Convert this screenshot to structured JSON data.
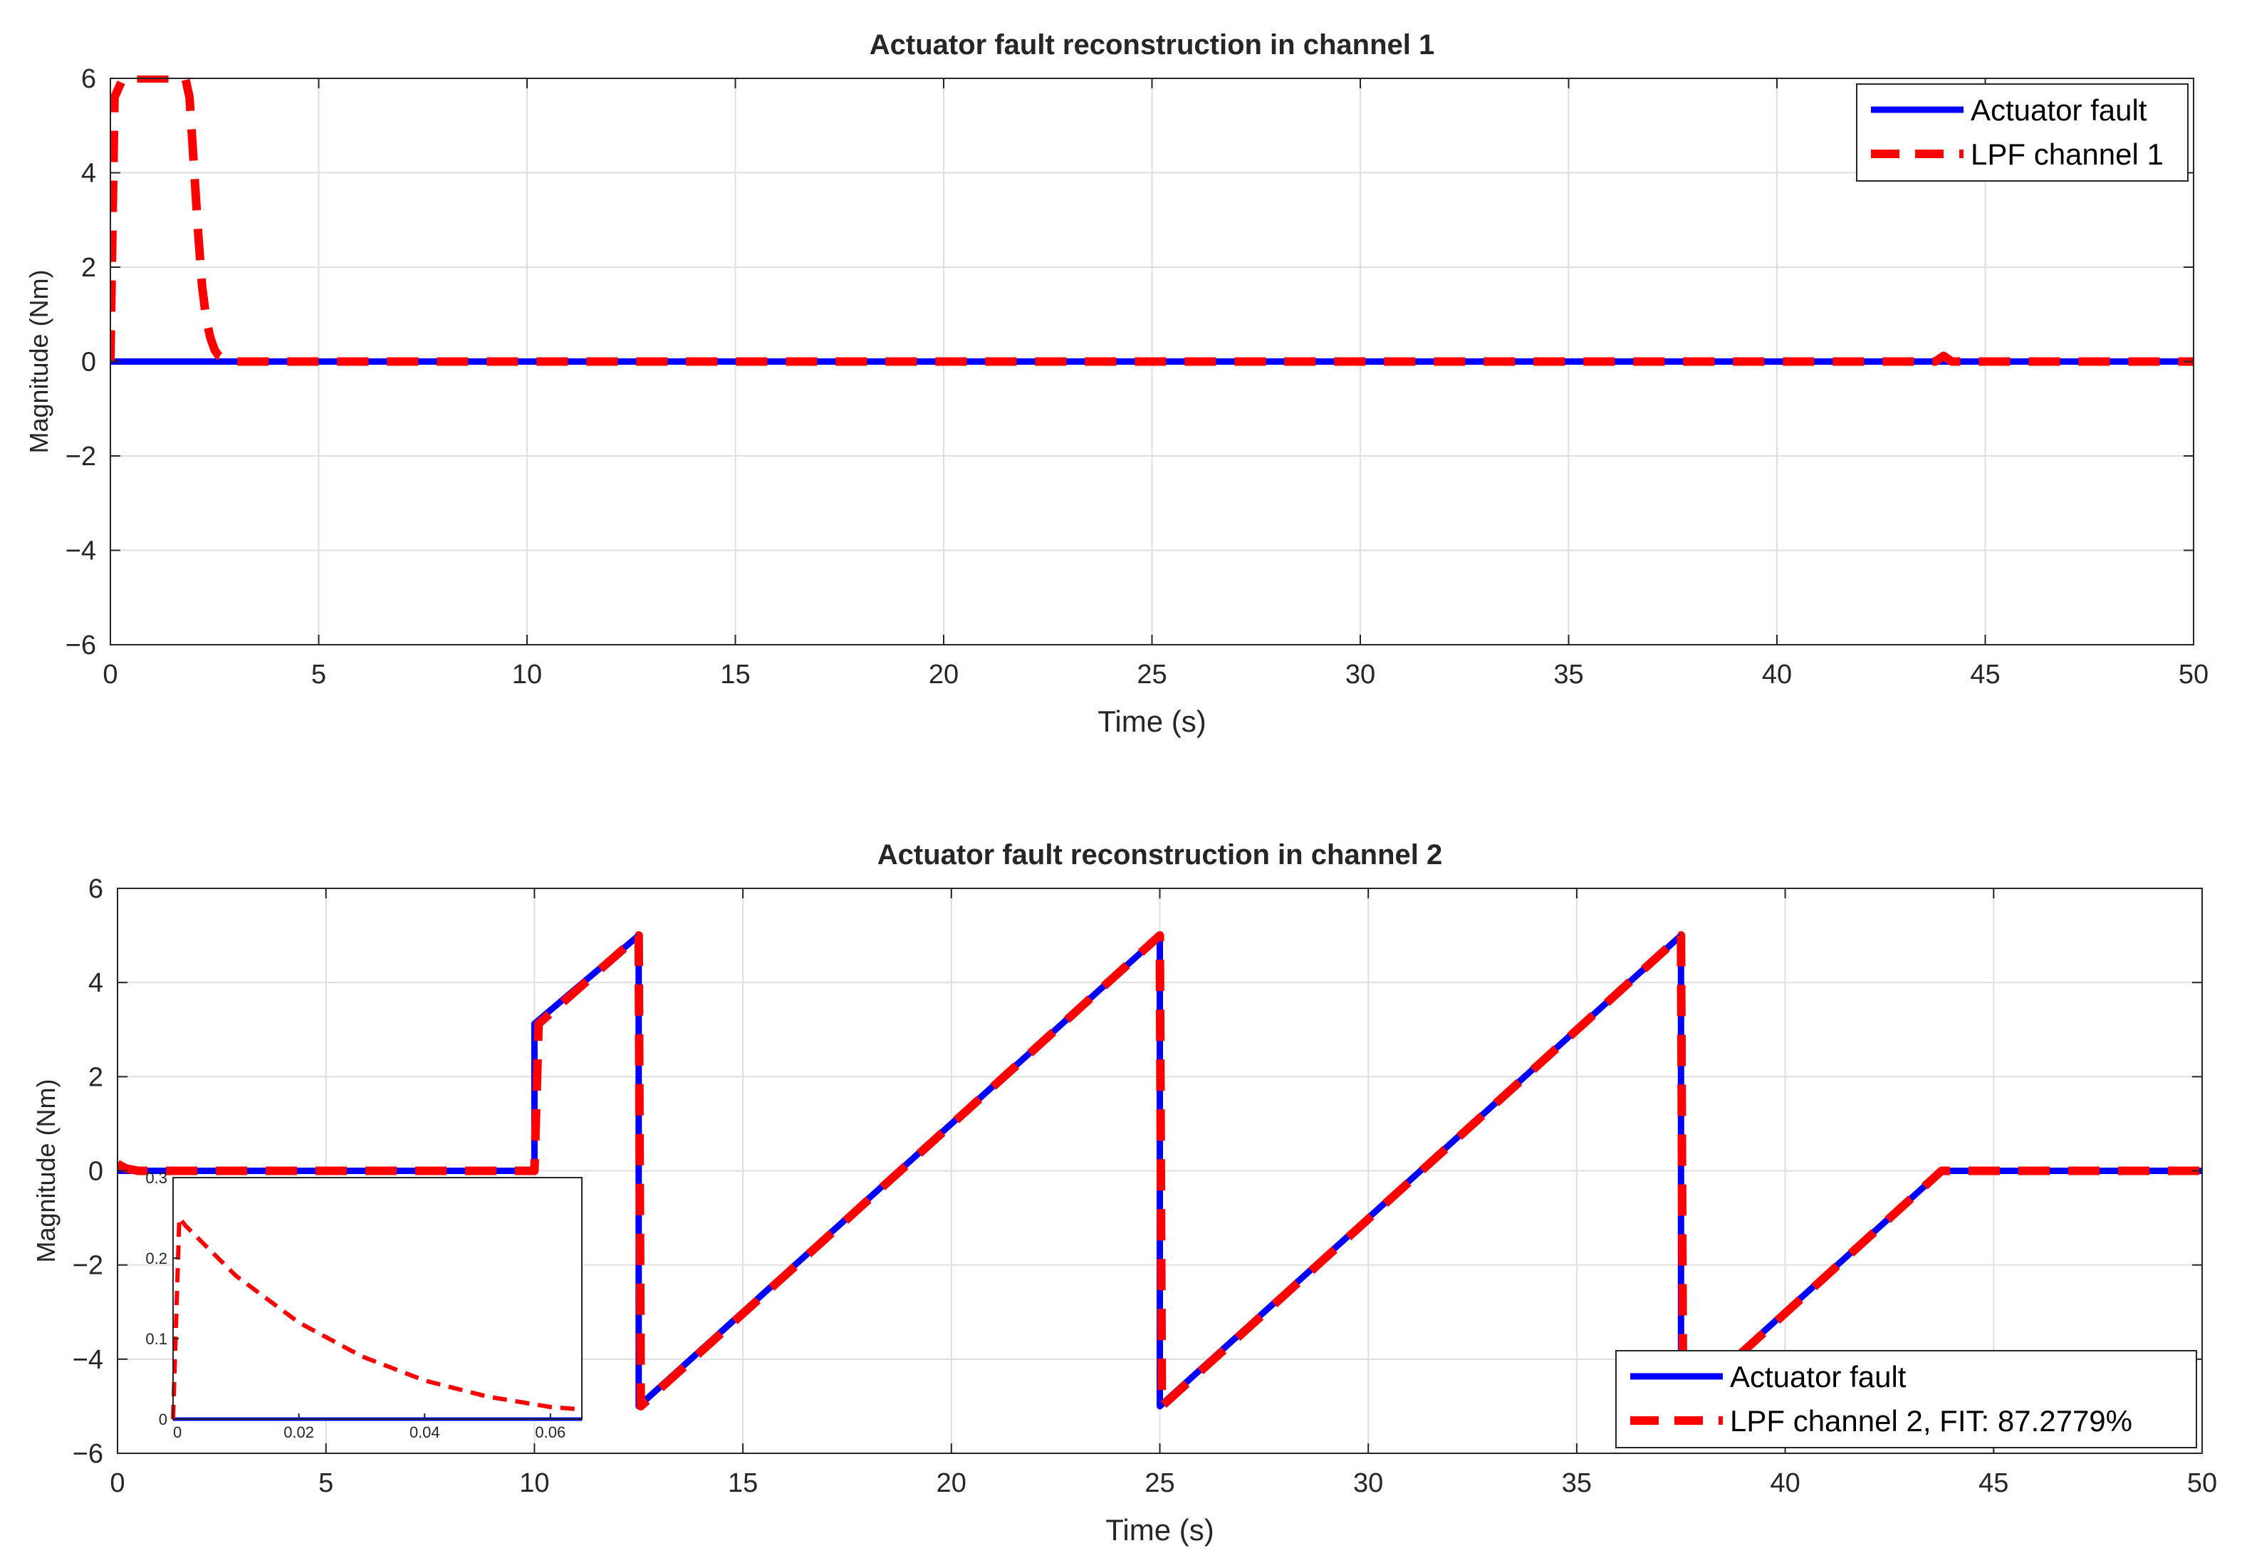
{
  "chart_data": [
    {
      "type": "line",
      "title": "Actuator fault reconstruction in channel 1",
      "xlabel": "Time (s)",
      "ylabel": "Magnitude (Nm)",
      "xlim": [
        0,
        50
      ],
      "ylim": [
        -6,
        6
      ],
      "xticks": [
        0,
        5,
        10,
        15,
        20,
        25,
        30,
        35,
        40,
        45,
        50
      ],
      "yticks": [
        -6,
        -4,
        -2,
        0,
        2,
        4,
        6
      ],
      "grid": true,
      "legend_position": "top-right",
      "series": [
        {
          "name": "Actuator fault",
          "color": "#0000ff",
          "style": "solid",
          "x": [
            0,
            50
          ],
          "y": [
            0,
            0
          ]
        },
        {
          "name": "LPF channel 1",
          "color": "#ff0000",
          "style": "dashed",
          "x": [
            0,
            0.1,
            0.3,
            1.0,
            1.8,
            1.9,
            2.0,
            2.1,
            2.2,
            2.3,
            2.4,
            2.5,
            2.6,
            2.8,
            3.0,
            3.5,
            43.8,
            44.0,
            44.2,
            50
          ],
          "y": [
            0,
            5.6,
            6,
            6,
            6,
            5.6,
            4.2,
            2.8,
            1.6,
            0.9,
            0.5,
            0.25,
            0.12,
            0.04,
            0,
            0,
            0,
            0.12,
            0,
            0
          ]
        }
      ]
    },
    {
      "type": "line",
      "title": "Actuator fault reconstruction in channel 2",
      "xlabel": "Time (s)",
      "ylabel": "Magnitude (Nm)",
      "xlim": [
        0,
        50
      ],
      "ylim": [
        -6,
        6
      ],
      "xticks": [
        0,
        5,
        10,
        15,
        20,
        25,
        30,
        35,
        40,
        45,
        50
      ],
      "yticks": [
        -6,
        -4,
        -2,
        0,
        2,
        4,
        6
      ],
      "grid": true,
      "legend_position": "bottom-right",
      "series": [
        {
          "name": "Actuator fault",
          "color": "#0000ff",
          "style": "solid",
          "x": [
            0,
            10,
            10,
            12.5,
            12.5,
            25,
            25,
            37.5,
            37.5,
            43.75,
            50
          ],
          "y": [
            0,
            0,
            3.125,
            5,
            -5,
            5,
            -5,
            5,
            -5,
            0,
            0
          ]
        },
        {
          "name": "LPF channel 2,  FIT: 87.2779%",
          "color": "#ff0000",
          "style": "dashed",
          "x": [
            0,
            0.2,
            0.5,
            10,
            10.1,
            12.5,
            12.55,
            25,
            25.05,
            37.5,
            37.55,
            43.75,
            50
          ],
          "y": [
            0.15,
            0.05,
            0,
            0,
            3.125,
            5,
            -5,
            5,
            -5,
            5,
            -5,
            0,
            0
          ]
        }
      ],
      "inset": {
        "xlim": [
          0,
          0.065
        ],
        "ylim": [
          0,
          0.3
        ],
        "xticks": [
          0,
          0.02,
          0.04,
          0.06
        ],
        "xtick_labels": [
          "0",
          "0.02",
          "0.04",
          "0.06"
        ],
        "yticks": [
          0,
          0.1,
          0.2,
          0.3
        ],
        "ytick_labels": [
          "0",
          "0.1",
          "0.2",
          "0.3"
        ],
        "series": [
          {
            "name": "Actuator fault",
            "color": "#0000ff",
            "style": "solid",
            "x": [
              0,
              0.065
            ],
            "y": [
              0,
              0
            ]
          },
          {
            "name": "LPF channel 2",
            "color": "#ff0000",
            "style": "dashed",
            "x": [
              0,
              0.001,
              0.002,
              0.01,
              0.02,
              0.03,
              0.04,
              0.05,
              0.06,
              0.065
            ],
            "y": [
              0,
              0.25,
              0.24,
              0.178,
              0.12,
              0.078,
              0.048,
              0.028,
              0.015,
              0.012
            ]
          }
        ]
      }
    }
  ]
}
